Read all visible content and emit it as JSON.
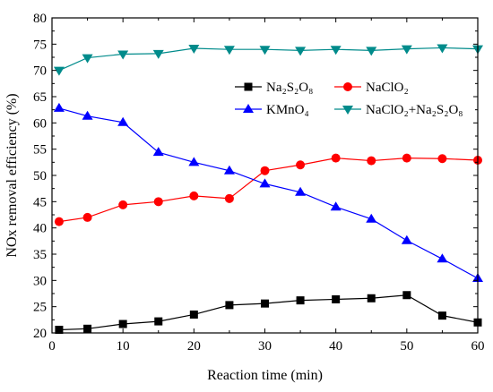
{
  "chart_data": {
    "type": "line",
    "xlabel": "Reaction time (min)",
    "ylabel": "NOx removal efficiency (%)",
    "xlim": [
      0,
      60
    ],
    "ylim": [
      20,
      80
    ],
    "xticks": [
      0,
      10,
      20,
      30,
      40,
      50,
      60
    ],
    "yticks": [
      20,
      25,
      30,
      35,
      40,
      45,
      50,
      55,
      60,
      65,
      70,
      75,
      80
    ],
    "grid": false,
    "legend_position": "upper-right",
    "series": [
      {
        "name": "Na₂S₂O₈",
        "color": "#000000",
        "marker": "square",
        "x": [
          1,
          5,
          10,
          15,
          20,
          25,
          30,
          35,
          40,
          45,
          50,
          55,
          60
        ],
        "y": [
          20.6,
          20.8,
          21.7,
          22.2,
          23.5,
          25.3,
          25.6,
          26.2,
          26.4,
          26.6,
          27.2,
          23.3,
          22.0
        ]
      },
      {
        "name": "NaClO₂",
        "color": "#ff0000",
        "marker": "circle",
        "x": [
          1,
          5,
          10,
          15,
          20,
          25,
          30,
          35,
          40,
          45,
          50,
          55,
          60
        ],
        "y": [
          41.2,
          42.0,
          44.4,
          45.0,
          46.1,
          45.6,
          50.9,
          52.0,
          53.3,
          52.8,
          53.3,
          53.2,
          52.9
        ]
      },
      {
        "name": "KMnO₄",
        "color": "#0000ff",
        "marker": "triangle-up",
        "x": [
          1,
          5,
          10,
          15,
          20,
          25,
          30,
          35,
          40,
          45,
          50,
          55,
          60
        ],
        "y": [
          62.8,
          61.3,
          60.1,
          54.4,
          52.5,
          50.9,
          48.4,
          46.8,
          44.0,
          41.7,
          37.6,
          34.1,
          30.4
        ]
      },
      {
        "name": "NaClO₂+Na₂S₂O₈",
        "color": "#008b8b",
        "marker": "triangle-down",
        "x": [
          1,
          5,
          10,
          15,
          20,
          25,
          30,
          35,
          40,
          45,
          50,
          55,
          60
        ],
        "y": [
          70.0,
          72.4,
          73.1,
          73.2,
          74.2,
          74.0,
          74.0,
          73.8,
          74.0,
          73.8,
          74.1,
          74.3,
          74.1
        ]
      }
    ]
  }
}
